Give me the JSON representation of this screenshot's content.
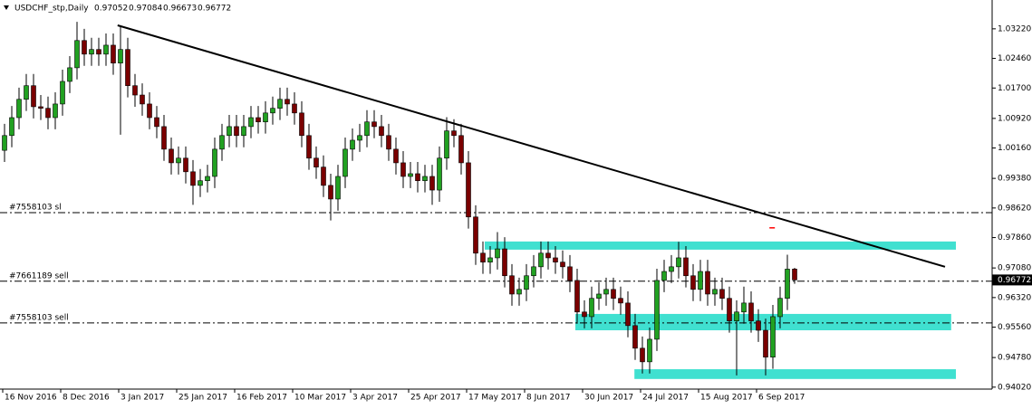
{
  "chart_data": {
    "type": "candlestick",
    "symbol": "USDCHF_stp,Daily",
    "categories": [
      "16 Nov 2016",
      null,
      null,
      null,
      null,
      null,
      null,
      null,
      "8 Dec 2016",
      null,
      null,
      null,
      null,
      null,
      null,
      null,
      "3 Jan 2017",
      null,
      null,
      null,
      null,
      null,
      null,
      null,
      "25 Jan 2017",
      null,
      null,
      null,
      null,
      null,
      null,
      null,
      "16 Feb 2017",
      null,
      null,
      null,
      null,
      null,
      null,
      null,
      "10 Mar 2017",
      null,
      null,
      null,
      null,
      null,
      null,
      null,
      "3 Apr 2017",
      null,
      null,
      null,
      null,
      null,
      null,
      null,
      "25 Apr 2017",
      null,
      null,
      null,
      null,
      null,
      null,
      null,
      "17 May 2017",
      null,
      null,
      null,
      null,
      null,
      null,
      null,
      "8 Jun 2017",
      null,
      null,
      null,
      null,
      null,
      null,
      null,
      "30 Jun 2017",
      null,
      null,
      null,
      null,
      null,
      null,
      null,
      "24 Jul 2017",
      null,
      null,
      null,
      null,
      null,
      null,
      null,
      "15 Aug 2017",
      null,
      null,
      null,
      null,
      null,
      null,
      null,
      "6 Sep 2017",
      null,
      null,
      null,
      null,
      null
    ],
    "open": [
      1.001,
      1.0048,
      1.0094,
      1.0141,
      1.0176,
      1.0122,
      1.0118,
      1.0094,
      1.0129,
      1.0187,
      1.0222,
      1.0292,
      1.0257,
      1.0269,
      1.0257,
      1.028,
      1.0234,
      1.0269,
      1.0176,
      1.0152,
      1.0129,
      1.0094,
      1.0071,
      1.0013,
      0.9978,
      0.999,
      0.9955,
      0.992,
      0.9932,
      0.9943,
      1.0013,
      1.0048,
      1.0071,
      1.0048,
      1.0071,
      1.0094,
      1.0083,
      1.0106,
      1.0118,
      1.0141,
      1.0129,
      1.0106,
      1.0048,
      0.999,
      0.9967,
      0.992,
      0.9885,
      0.9943,
      1.0013,
      1.0036,
      1.0048,
      1.0083,
      1.0071,
      1.0048,
      1.0013,
      0.9978,
      0.9943,
      0.995,
      0.9932,
      0.9943,
      0.9908,
      0.999,
      1.006,
      1.0048,
      0.9978,
      0.9839,
      0.9746,
      0.9723,
      0.9734,
      0.9757,
      0.9688,
      0.9641,
      0.9653,
      0.9688,
      0.9711,
      0.9746,
      0.9734,
      0.9723,
      0.9711,
      0.9676,
      0.9595,
      0.9583,
      0.963,
      0.9641,
      0.9653,
      0.963,
      0.9618,
      0.956,
      0.9502,
      0.9467,
      0.9525,
      0.9676,
      0.9699,
      0.9711,
      0.9734,
      0.9688,
      0.9653,
      0.9699,
      0.9641,
      0.9653,
      0.963,
      0.9572,
      0.9595,
      0.9618,
      0.9572,
      0.9548,
      0.9479,
      0.9583,
      0.963,
      0.97052
    ],
    "high": [
      1.0078,
      1.0124,
      1.0171,
      1.0206,
      1.0206,
      1.0152,
      1.0148,
      1.0159,
      1.0217,
      1.0252,
      1.034,
      1.0322,
      1.0299,
      1.0299,
      1.031,
      1.031,
      1.0331,
      1.0299,
      1.0206,
      1.0182,
      1.0159,
      1.0124,
      1.0101,
      1.0043,
      1.002,
      1.002,
      0.9985,
      0.9962,
      0.9973,
      1.0043,
      1.0078,
      1.0101,
      1.0101,
      1.0101,
      1.0124,
      1.0124,
      1.0136,
      1.0148,
      1.0171,
      1.0171,
      1.0159,
      1.0136,
      1.0078,
      1.002,
      0.9997,
      0.995,
      0.9973,
      1.0043,
      1.0066,
      1.0078,
      1.0113,
      1.0113,
      1.0101,
      1.0078,
      1.0043,
      1.0008,
      0.998,
      0.998,
      0.9973,
      0.9973,
      1.002,
      1.0095,
      1.009,
      1.0078,
      1.0008,
      0.9869,
      0.9776,
      0.9764,
      0.98,
      0.9787,
      0.9718,
      0.9683,
      0.9718,
      0.9741,
      0.9776,
      0.9776,
      0.9764,
      0.9753,
      0.9741,
      0.9706,
      0.9625,
      0.966,
      0.9671,
      0.9683,
      0.9683,
      0.966,
      0.9648,
      0.959,
      0.9532,
      0.9555,
      0.9706,
      0.9729,
      0.9741,
      0.9775,
      0.9764,
      0.9718,
      0.9729,
      0.9729,
      0.9683,
      0.9683,
      0.966,
      0.9625,
      0.966,
      0.9648,
      0.9602,
      0.9578,
      0.9613,
      0.966,
      0.9742,
      0.97084
    ],
    "low": [
      0.998,
      1.0018,
      1.0064,
      1.0111,
      1.0092,
      1.0088,
      1.0064,
      1.0064,
      1.0099,
      1.0157,
      1.0192,
      1.0227,
      1.0227,
      1.0227,
      1.0227,
      1.0204,
      1.005,
      1.0146,
      1.0122,
      1.0099,
      1.0064,
      1.0041,
      0.9983,
      0.9948,
      0.9948,
      0.9925,
      0.987,
      0.989,
      0.9902,
      0.9913,
      0.9983,
      1.0018,
      1.0018,
      1.0018,
      1.0041,
      1.0053,
      1.0053,
      1.0076,
      1.0088,
      1.0099,
      1.0076,
      1.0018,
      0.996,
      0.9937,
      0.989,
      0.983,
      0.9855,
      0.9913,
      0.9983,
      1.0006,
      1.0018,
      1.0041,
      1.0018,
      0.9983,
      0.9948,
      0.9913,
      0.9913,
      0.9902,
      0.9902,
      0.987,
      0.9878,
      0.996,
      1.0018,
      0.9948,
      0.9809,
      0.9716,
      0.9693,
      0.9693,
      0.9704,
      0.9658,
      0.9611,
      0.9611,
      0.9623,
      0.9658,
      0.9681,
      0.9704,
      0.9693,
      0.9681,
      0.9646,
      0.9565,
      0.9553,
      0.9553,
      0.96,
      0.9611,
      0.96,
      0.9588,
      0.953,
      0.9472,
      0.9437,
      0.9437,
      0.9495,
      0.9646,
      0.9669,
      0.9681,
      0.9658,
      0.9623,
      0.9623,
      0.9611,
      0.9611,
      0.96,
      0.9542,
      0.9432,
      0.9565,
      0.9542,
      0.9518,
      0.9432,
      0.9449,
      0.9553,
      0.96,
      0.96673
    ],
    "close": [
      1.0048,
      1.0094,
      1.0141,
      1.0176,
      1.0122,
      1.0118,
      1.0094,
      1.0129,
      1.0187,
      1.0222,
      1.0292,
      1.0257,
      1.0269,
      1.0257,
      1.028,
      1.0234,
      1.0269,
      1.0176,
      1.0152,
      1.0129,
      1.0094,
      1.0071,
      1.0013,
      0.9978,
      0.999,
      0.9955,
      0.992,
      0.9932,
      0.9943,
      1.0013,
      1.0048,
      1.0071,
      1.0048,
      1.0071,
      1.0094,
      1.0083,
      1.0106,
      1.0118,
      1.0141,
      1.0129,
      1.0106,
      1.0048,
      0.999,
      0.9967,
      0.992,
      0.9885,
      0.9943,
      1.0013,
      1.0036,
      1.0048,
      1.0083,
      1.0071,
      1.0048,
      1.0013,
      0.9978,
      0.9943,
      0.995,
      0.9932,
      0.9943,
      0.9908,
      0.999,
      1.006,
      1.0048,
      0.9978,
      0.9839,
      0.9746,
      0.9723,
      0.9734,
      0.9757,
      0.9688,
      0.9641,
      0.9653,
      0.9688,
      0.9711,
      0.9746,
      0.9734,
      0.9723,
      0.9711,
      0.9676,
      0.9595,
      0.9583,
      0.963,
      0.9641,
      0.9653,
      0.963,
      0.9618,
      0.956,
      0.9502,
      0.9467,
      0.9525,
      0.9676,
      0.9699,
      0.9711,
      0.9734,
      0.9688,
      0.9653,
      0.9699,
      0.9641,
      0.9653,
      0.963,
      0.9572,
      0.9595,
      0.9618,
      0.9572,
      0.9548,
      0.9479,
      0.9583,
      0.963,
      0.9705,
      0.96772
    ],
    "up_color": "#21a121",
    "down_color": "#7a0000",
    "wick_color": "#000000",
    "ylim": [
      0.9397,
      1.0396
    ],
    "yticks": [
      {
        "value": 1.0322,
        "label": "1.03220"
      },
      {
        "value": 1.0246,
        "label": "1.02460"
      },
      {
        "value": 1.017,
        "label": "1.01700"
      },
      {
        "value": 1.0092,
        "label": "1.00920"
      },
      {
        "value": 1.0016,
        "label": "1.00160"
      },
      {
        "value": 0.9938,
        "label": "0.99380"
      },
      {
        "value": 0.9862,
        "label": "0.98620"
      },
      {
        "value": 0.9786,
        "label": "0.97860"
      },
      {
        "value": 0.9708,
        "label": "0.97080"
      },
      {
        "value": 0.9632,
        "label": "0.96320"
      },
      {
        "value": 0.9556,
        "label": "0.95560"
      },
      {
        "value": 0.9478,
        "label": "0.94780"
      },
      {
        "value": 0.9402,
        "label": "0.94020"
      }
    ],
    "levels": [
      {
        "label": "#7558103 sl",
        "price": 0.985
      },
      {
        "label": "#7661189 sell",
        "price": 0.9674
      },
      {
        "label": "#7558103 sell",
        "price": 0.9567
      }
    ],
    "zones": [
      {
        "x_from": 66.25,
        "x_to": 131.25,
        "top": 0.9776,
        "bottom": 0.9755
      },
      {
        "x_from": 78.75,
        "x_to": 130.6,
        "top": 0.959,
        "bottom": 0.9548
      },
      {
        "x_from": 86.9,
        "x_to": 131.25,
        "top": 0.9448,
        "bottom": 0.9423
      }
    ],
    "zone_color": "#40e0d0",
    "trendline": {
      "x": [
        15.6,
        129.75
      ],
      "price": [
        1.0331,
        0.9711
      ]
    },
    "marker": {
      "x": 105.9,
      "price": 0.9811,
      "color": "#ff0000"
    },
    "grid": false
  }
}
